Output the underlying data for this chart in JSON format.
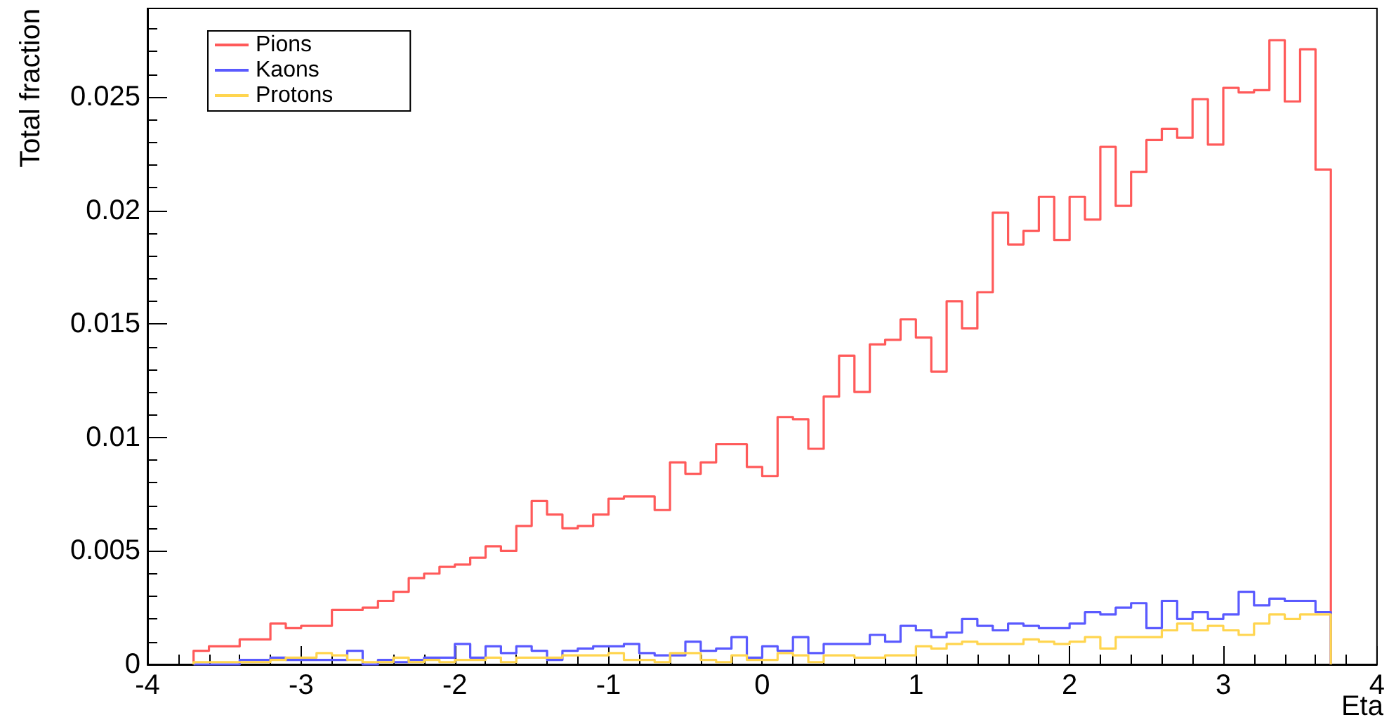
{
  "chart_data": {
    "type": "histogram",
    "xlabel": "Eta",
    "ylabel": "Total fraction",
    "bins": [
      -3.7,
      -3.6,
      -3.5,
      -3.4,
      -3.3,
      -3.2,
      -3.1,
      -3,
      -2.9,
      -2.8,
      -2.7,
      -2.6,
      -2.5,
      -2.4,
      -2.3,
      -2.2,
      -2.1,
      -2,
      -1.9,
      -1.8,
      -1.7,
      -1.6,
      -1.5,
      -1.4,
      -1.3,
      -1.2,
      -1.1,
      -1,
      -0.9,
      -0.8,
      -0.7,
      -0.6,
      -0.5,
      -0.4,
      -0.3,
      -0.2,
      -0.1,
      0,
      0.1,
      0.2,
      0.3,
      0.4,
      0.5,
      0.6,
      0.7,
      0.8,
      0.9,
      1,
      1.1,
      1.2,
      1.3,
      1.4,
      1.5,
      1.6,
      1.7,
      1.8,
      1.9,
      2,
      2.1,
      2.2,
      2.3,
      2.4,
      2.5,
      2.6,
      2.7,
      2.8,
      2.9,
      3,
      3.1,
      3.2,
      3.3,
      3.4,
      3.5,
      3.6,
      3.7
    ],
    "series": [
      {
        "name": "Pions",
        "color": "#ff5a5a",
        "values": [
          0.0006,
          0.0008,
          0.0008,
          0.0011,
          0.0011,
          0.0018,
          0.0016,
          0.0017,
          0.0017,
          0.0024,
          0.0024,
          0.0025,
          0.0028,
          0.0032,
          0.0038,
          0.004,
          0.0043,
          0.0044,
          0.0047,
          0.0052,
          0.005,
          0.0061,
          0.0072,
          0.0066,
          0.006,
          0.0061,
          0.0066,
          0.0073,
          0.0074,
          0.0074,
          0.0068,
          0.0089,
          0.0084,
          0.0089,
          0.0097,
          0.0097,
          0.0087,
          0.0083,
          0.0109,
          0.0108,
          0.0095,
          0.0118,
          0.0136,
          0.012,
          0.0141,
          0.0143,
          0.0152,
          0.0144,
          0.0129,
          0.016,
          0.0148,
          0.0164,
          0.0199,
          0.0185,
          0.0191,
          0.0206,
          0.0187,
          0.0206,
          0.0196,
          0.0228,
          0.0202,
          0.0217,
          0.0231,
          0.0236,
          0.0232,
          0.0249,
          0.0229,
          0.0254,
          0.0252,
          0.0253,
          0.0275,
          0.0248,
          0.0271,
          0.0218
        ]
      },
      {
        "name": "Kaons",
        "color": "#5a5aff",
        "values": [
          0,
          0,
          0,
          0.0002,
          0.0002,
          0.0003,
          0.0002,
          0.0002,
          0.0002,
          0.0002,
          0.0006,
          0,
          0.0002,
          0.0001,
          0.0002,
          0.0003,
          0.0003,
          0.0009,
          0.0003,
          0.0008,
          0.0005,
          0.0008,
          0.0006,
          0.0002,
          0.0006,
          0.0007,
          0.0008,
          0.0008,
          0.0009,
          0.0005,
          0.0004,
          0.0004,
          0.001,
          0.0006,
          0.0007,
          0.0012,
          0.0003,
          0.0008,
          0.0006,
          0.0012,
          0.0005,
          0.0009,
          0.0009,
          0.0009,
          0.0013,
          0.001,
          0.0017,
          0.0015,
          0.0012,
          0.0014,
          0.002,
          0.0017,
          0.0015,
          0.0018,
          0.0017,
          0.0016,
          0.0016,
          0.0018,
          0.0023,
          0.0022,
          0.0025,
          0.0027,
          0.0016,
          0.0028,
          0.002,
          0.0023,
          0.002,
          0.0022,
          0.0032,
          0.0026,
          0.0029,
          0.0028,
          0.0028,
          0.0023
        ]
      },
      {
        "name": "Protons",
        "color": "#ffd54f",
        "values": [
          0.0001,
          0.0001,
          0.0001,
          0.0001,
          0.0001,
          0.0002,
          0.0003,
          0.0003,
          0.0005,
          0.0004,
          0.0002,
          0.0001,
          0.0001,
          0.0003,
          0.0001,
          0.0002,
          0.0001,
          0.0002,
          0.0002,
          0.0003,
          0.0001,
          0.0003,
          0.0003,
          0.0003,
          0.0004,
          0.0004,
          0.0004,
          0.0005,
          0.0002,
          0.0002,
          0.0001,
          0.0005,
          0.0005,
          0.0002,
          0.0001,
          0.0004,
          0.0002,
          0.0002,
          0.0005,
          0.0004,
          0.0001,
          0.0004,
          0.0004,
          0.0003,
          0.0003,
          0.0004,
          0.0004,
          0.0008,
          0.0007,
          0.0009,
          0.001,
          0.0009,
          0.0009,
          0.0009,
          0.0011,
          0.001,
          0.0009,
          0.001,
          0.0012,
          0.0007,
          0.0012,
          0.0012,
          0.0012,
          0.0015,
          0.0018,
          0.0015,
          0.0017,
          0.0015,
          0.0013,
          0.0018,
          0.0022,
          0.002,
          0.0022,
          0.0022
        ]
      }
    ],
    "xlim": [
      -4,
      4
    ],
    "xticks": [
      -4,
      -3,
      -2,
      -1,
      0,
      1,
      2,
      3,
      4
    ],
    "ylim": [
      0,
      0.0289
    ],
    "yticks": [
      0,
      0.005,
      0.01,
      0.015,
      0.02,
      0.025
    ],
    "legend": "top left"
  }
}
